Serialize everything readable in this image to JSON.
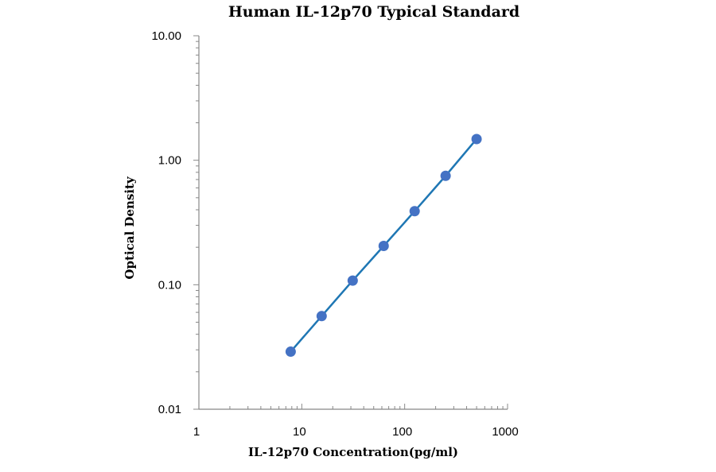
{
  "chart_data": {
    "type": "scatter",
    "title": "Human IL-12p70 Typical Standard",
    "xlabel": "IL-12p70 Concentration(pg/ml)",
    "ylabel": "Optical Density",
    "x_scale": "log",
    "y_scale": "log",
    "xlim": [
      1,
      1000
    ],
    "ylim": [
      0.01,
      10
    ],
    "x_ticks": [
      "1",
      "10",
      "100",
      "1000"
    ],
    "y_ticks": [
      "0.01",
      "0.10",
      "1.00",
      "10.00"
    ],
    "grid": false,
    "legend": "none",
    "series": [
      {
        "color": "#4472C4",
        "line_color": "#1F77B4",
        "x": [
          7.8,
          15.6,
          31.25,
          62.5,
          125,
          250,
          500
        ],
        "y": [
          0.029,
          0.056,
          0.108,
          0.205,
          0.39,
          0.75,
          1.48
        ],
        "fit_line": true
      }
    ]
  }
}
